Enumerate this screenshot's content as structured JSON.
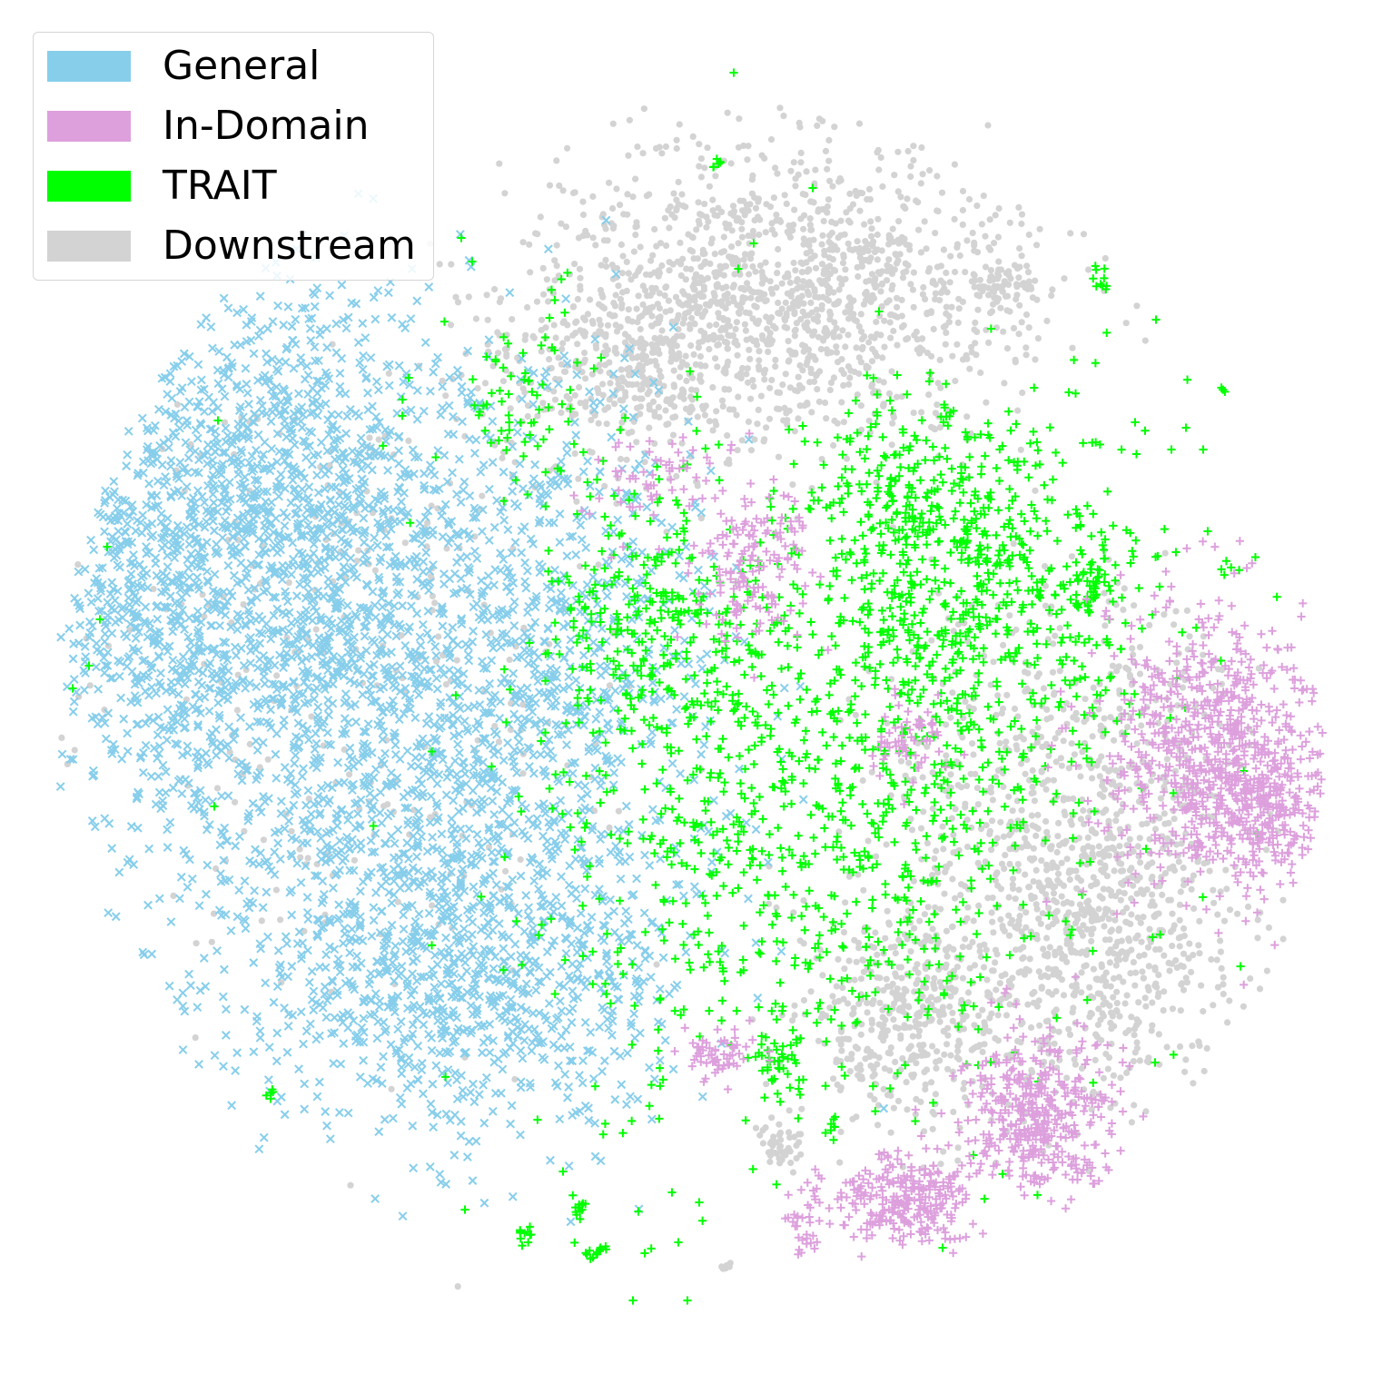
{
  "chart_data": {
    "type": "scatter",
    "title": "",
    "xlabel": "",
    "ylabel": "",
    "axes_visible": false,
    "grid": false,
    "legend_placement": "top-left",
    "series": [
      {
        "name": "General",
        "marker": "x",
        "color": "#87CEEB",
        "clusters": [
          {
            "cx": 300,
            "cy": 560,
            "sx": 120,
            "sy": 130,
            "n": 1300
          },
          {
            "cx": 430,
            "cy": 850,
            "sx": 150,
            "sy": 170,
            "n": 1400
          },
          {
            "cx": 520,
            "cy": 1080,
            "sx": 120,
            "sy": 80,
            "n": 700
          },
          {
            "cx": 620,
            "cy": 700,
            "sx": 80,
            "sy": 160,
            "n": 500
          },
          {
            "cx": 170,
            "cy": 690,
            "sx": 50,
            "sy": 100,
            "n": 300
          }
        ]
      },
      {
        "name": "In-Domain",
        "marker": "+",
        "color": "#DDA0DD",
        "clusters": [
          {
            "cx": 1330,
            "cy": 820,
            "sx": 55,
            "sy": 80,
            "n": 650
          },
          {
            "cx": 1390,
            "cy": 890,
            "sx": 35,
            "sy": 40,
            "n": 250
          },
          {
            "cx": 1140,
            "cy": 1230,
            "sx": 45,
            "sy": 45,
            "n": 420
          },
          {
            "cx": 1000,
            "cy": 1320,
            "sx": 35,
            "sy": 25,
            "n": 250
          },
          {
            "cx": 830,
            "cy": 620,
            "sx": 35,
            "sy": 45,
            "n": 160
          },
          {
            "cx": 1005,
            "cy": 810,
            "sx": 22,
            "sy": 20,
            "n": 60
          },
          {
            "cx": 790,
            "cy": 1160,
            "sx": 18,
            "sy": 15,
            "n": 60
          },
          {
            "cx": 890,
            "cy": 1340,
            "sx": 15,
            "sy": 25,
            "n": 40
          },
          {
            "cx": 720,
            "cy": 530,
            "sx": 40,
            "sy": 25,
            "n": 60
          }
        ]
      },
      {
        "name": "TRAIT",
        "marker": "+",
        "color": "#00FF00",
        "clusters": [
          {
            "cx": 900,
            "cy": 900,
            "sx": 150,
            "sy": 150,
            "n": 900
          },
          {
            "cx": 1100,
            "cy": 650,
            "sx": 100,
            "sy": 100,
            "n": 500
          },
          {
            "cx": 720,
            "cy": 680,
            "sx": 60,
            "sy": 70,
            "n": 250
          },
          {
            "cx": 1000,
            "cy": 560,
            "sx": 70,
            "sy": 60,
            "n": 250
          },
          {
            "cx": 580,
            "cy": 430,
            "sx": 50,
            "sy": 60,
            "n": 80
          },
          {
            "cx": 1200,
            "cy": 650,
            "sx": 10,
            "sy": 12,
            "n": 30
          },
          {
            "cx": 860,
            "cy": 1170,
            "sx": 18,
            "sy": 20,
            "n": 40
          },
          {
            "cx": 1215,
            "cy": 305,
            "sx": 5,
            "sy": 8,
            "n": 10
          },
          {
            "cx": 789,
            "cy": 180,
            "sx": 6,
            "sy": 3,
            "n": 6
          },
          {
            "cx": 580,
            "cy": 1357,
            "sx": 5,
            "sy": 5,
            "n": 12
          },
          {
            "cx": 640,
            "cy": 1330,
            "sx": 5,
            "sy": 8,
            "n": 12
          },
          {
            "cx": 656,
            "cy": 1378,
            "sx": 8,
            "sy": 5,
            "n": 14
          },
          {
            "cx": 918,
            "cy": 1240,
            "sx": 4,
            "sy": 6,
            "n": 8
          },
          {
            "cx": 295,
            "cy": 1205,
            "sx": 4,
            "sy": 4,
            "n": 5
          },
          {
            "cx": 1350,
            "cy": 622,
            "sx": 4,
            "sy": 4,
            "n": 4
          },
          {
            "cx": 1346,
            "cy": 430,
            "sx": 3,
            "sy": 3,
            "n": 3
          }
        ],
        "scattered": [
          [
            808,
            80
          ],
          [
            895,
            207
          ],
          [
            1273,
            352
          ],
          [
            1177,
            432
          ],
          [
            1325,
            495
          ],
          [
            1330,
            585
          ],
          [
            512,
            1332
          ],
          [
            697,
            1432
          ],
          [
            757,
            1432
          ],
          [
            620,
            1290
          ],
          [
            703,
            1334
          ],
          [
            740,
            1313
          ],
          [
            747,
            1368
          ],
          [
            770,
            1324
          ],
          [
            710,
            1380
          ],
          [
            80,
            758
          ],
          [
            118,
            602
          ],
          [
            110,
            682
          ],
          [
            98,
            733
          ],
          [
            508,
            262
          ],
          [
            520,
            288
          ],
          [
            1272,
            1170
          ],
          [
            1295,
            608
          ],
          [
            1290,
            495
          ],
          [
            1250,
            465
          ],
          [
            830,
            268
          ],
          [
            813,
            296
          ],
          [
            968,
            343
          ],
          [
            988,
            413
          ],
          [
            1020,
            485
          ],
          [
            236,
            888
          ],
          [
            240,
            463
          ]
        ]
      },
      {
        "name": "Downstream",
        "marker": "o",
        "color": "#D3D3D3",
        "clusters": [
          {
            "cx": 880,
            "cy": 320,
            "sx": 130,
            "sy": 80,
            "n": 1300
          },
          {
            "cx": 700,
            "cy": 400,
            "sx": 80,
            "sy": 60,
            "n": 400
          },
          {
            "cx": 1110,
            "cy": 315,
            "sx": 20,
            "sy": 15,
            "n": 60
          },
          {
            "cx": 1210,
            "cy": 1020,
            "sx": 80,
            "sy": 90,
            "n": 800
          },
          {
            "cx": 1000,
            "cy": 1120,
            "sx": 60,
            "sy": 60,
            "n": 450
          },
          {
            "cx": 1110,
            "cy": 860,
            "sx": 70,
            "sy": 100,
            "n": 300
          },
          {
            "cx": 860,
            "cy": 1260,
            "sx": 12,
            "sy": 12,
            "n": 50
          },
          {
            "cx": 400,
            "cy": 700,
            "sx": 150,
            "sy": 220,
            "n": 280
          },
          {
            "cx": 1250,
            "cy": 800,
            "sx": 60,
            "sy": 90,
            "n": 150
          },
          {
            "cx": 800,
            "cy": 1398,
            "sx": 4,
            "sy": 5,
            "n": 8
          }
        ],
        "scattered": [
          [
            1088,
            138
          ]
        ]
      }
    ],
    "legend": [
      {
        "label": "General",
        "color": "#87CEEB"
      },
      {
        "label": "In-Domain",
        "color": "#DDA0DD"
      },
      {
        "label": "TRAIT",
        "color": "#00FF00"
      },
      {
        "label": "Downstream",
        "color": "#D3D3D3"
      }
    ]
  }
}
